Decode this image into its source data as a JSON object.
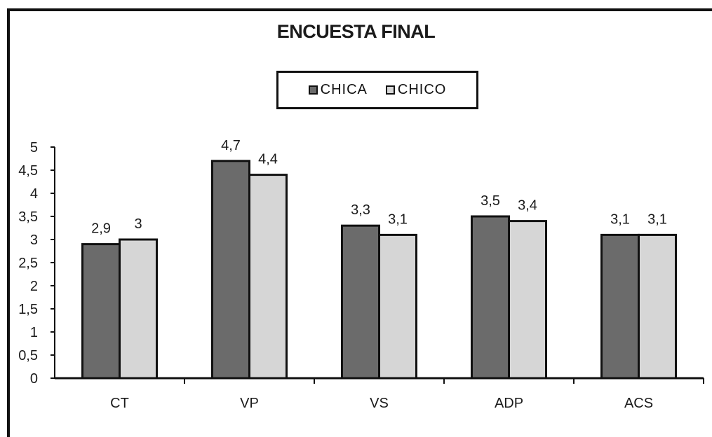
{
  "chart_data": {
    "type": "bar",
    "title": "ENCUESTA FINAL",
    "categories": [
      "CT",
      "VP",
      "VS",
      "ADP",
      "ACS"
    ],
    "series": [
      {
        "name": "CHICA",
        "values": [
          2.9,
          4.7,
          3.3,
          3.5,
          3.1
        ],
        "labels": [
          "2,9",
          "4,7",
          "3,3",
          "3,5",
          "3,1"
        ],
        "color": "#6b6b6b"
      },
      {
        "name": "CHICO",
        "values": [
          3.0,
          4.4,
          3.1,
          3.4,
          3.1
        ],
        "labels": [
          "3",
          "4,4",
          "3,1",
          "3,4",
          "3,1"
        ],
        "color": "#d6d6d6"
      }
    ],
    "yticks": [
      "0",
      "0,5",
      "1",
      "1,5",
      "2",
      "2,5",
      "3",
      "3,5",
      "4",
      "4,5",
      "5"
    ],
    "ylim": [
      0,
      5
    ],
    "xlabel": "",
    "ylabel": "",
    "grid": false,
    "legend_position": "top-center"
  }
}
